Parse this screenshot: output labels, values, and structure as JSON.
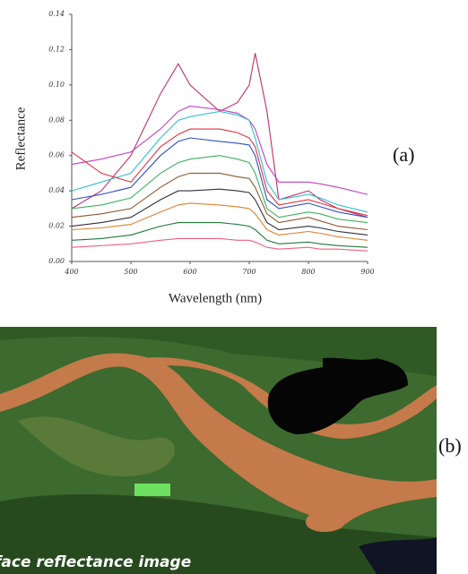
{
  "chart_data": {
    "type": "line",
    "y_label": "Reflectance",
    "x_label": "Wavelength (nm)",
    "xlim": [
      400,
      900
    ],
    "ylim": [
      0,
      0.14
    ],
    "xticks": [
      400,
      500,
      600,
      700,
      800,
      900
    ],
    "yticks": [
      {
        "value": 0,
        "label": "0.00"
      },
      0.02,
      0.04,
      0.06,
      0.08,
      {
        "value": 0.1,
        "label": "0.10"
      },
      0.12,
      0.14
    ],
    "grid": false,
    "x": [
      400,
      450,
      500,
      550,
      580,
      600,
      650,
      680,
      700,
      710,
      730,
      750,
      800,
      820,
      850,
      900
    ],
    "series": [
      {
        "color": "#c0306a",
        "values": [
          0.03,
          0.04,
          0.06,
          0.095,
          0.112,
          0.1,
          0.085,
          0.09,
          0.1,
          0.118,
          0.085,
          0.035,
          0.04,
          0.035,
          0.03,
          0.025
        ]
      },
      {
        "color": "#c040c0",
        "values": [
          0.055,
          0.058,
          0.062,
          0.075,
          0.085,
          0.088,
          0.086,
          0.084,
          0.08,
          0.075,
          0.055,
          0.045,
          0.045,
          0.044,
          0.042,
          0.038
        ]
      },
      {
        "color": "#30c0d0",
        "values": [
          0.04,
          0.045,
          0.05,
          0.07,
          0.08,
          0.082,
          0.085,
          0.083,
          0.08,
          0.07,
          0.045,
          0.035,
          0.038,
          0.036,
          0.032,
          0.028
        ]
      },
      {
        "color": "#e03040",
        "values": [
          0.062,
          0.05,
          0.045,
          0.065,
          0.072,
          0.075,
          0.075,
          0.073,
          0.07,
          0.065,
          0.04,
          0.032,
          0.035,
          0.033,
          0.03,
          0.026
        ]
      },
      {
        "color": "#3050c0",
        "values": [
          0.035,
          0.038,
          0.042,
          0.06,
          0.068,
          0.07,
          0.068,
          0.067,
          0.066,
          0.06,
          0.035,
          0.03,
          0.033,
          0.031,
          0.028,
          0.025
        ]
      },
      {
        "color": "#40b060",
        "values": [
          0.03,
          0.032,
          0.036,
          0.05,
          0.056,
          0.058,
          0.06,
          0.058,
          0.056,
          0.05,
          0.03,
          0.025,
          0.028,
          0.027,
          0.024,
          0.022
        ]
      },
      {
        "color": "#8a5a30",
        "values": [
          0.025,
          0.027,
          0.03,
          0.042,
          0.048,
          0.05,
          0.05,
          0.048,
          0.047,
          0.042,
          0.027,
          0.022,
          0.025,
          0.023,
          0.02,
          0.018
        ]
      },
      {
        "color": "#303040",
        "values": [
          0.02,
          0.022,
          0.025,
          0.035,
          0.04,
          0.04,
          0.041,
          0.04,
          0.039,
          0.035,
          0.022,
          0.018,
          0.02,
          0.019,
          0.017,
          0.015
        ]
      },
      {
        "color": "#e08030",
        "values": [
          0.018,
          0.019,
          0.021,
          0.028,
          0.032,
          0.033,
          0.032,
          0.031,
          0.03,
          0.027,
          0.018,
          0.015,
          0.017,
          0.016,
          0.014,
          0.012
        ]
      },
      {
        "color": "#1f7a3a",
        "values": [
          0.012,
          0.013,
          0.015,
          0.02,
          0.022,
          0.022,
          0.022,
          0.021,
          0.02,
          0.018,
          0.012,
          0.01,
          0.011,
          0.01,
          0.009,
          0.008
        ]
      },
      {
        "color": "#f06080",
        "values": [
          0.008,
          0.009,
          0.01,
          0.012,
          0.013,
          0.013,
          0.013,
          0.012,
          0.012,
          0.011,
          0.008,
          0.007,
          0.008,
          0.007,
          0.007,
          0.006
        ]
      }
    ]
  },
  "panel_labels": [
    "(a)",
    "(b)"
  ],
  "image": {
    "caption": "face reflectance image"
  }
}
